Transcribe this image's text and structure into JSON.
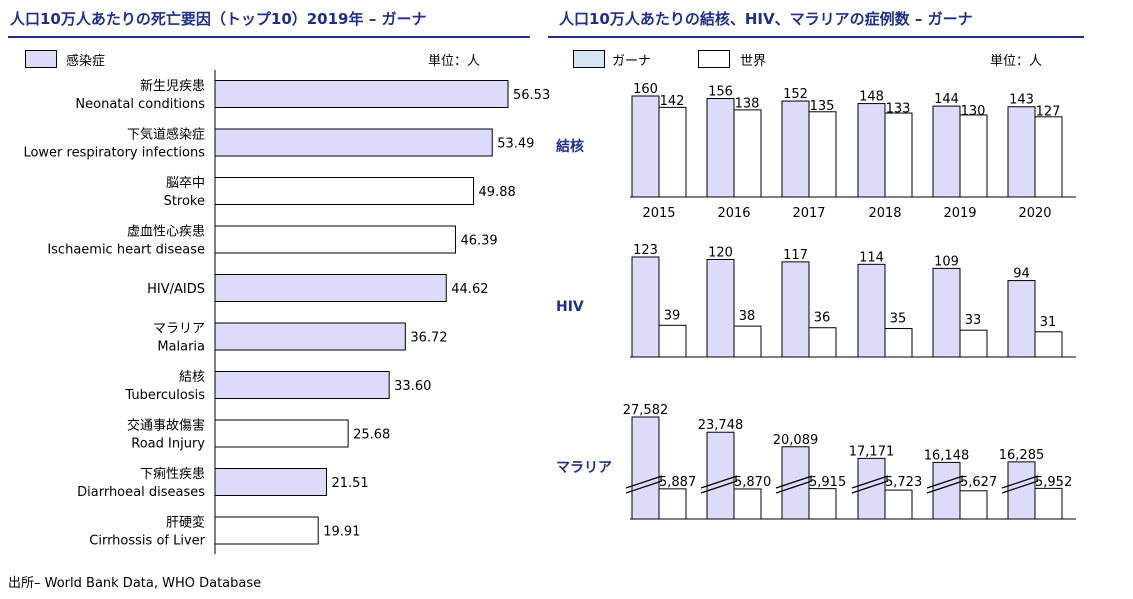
{
  "left": {
    "title": "人口10万人あたりの死亡要因（トップ10）2019年 – ガーナ",
    "legend_label": "感染症",
    "unit": "単位：人"
  },
  "right": {
    "title": "人口10万人あたりの結核、HIV、マラリアの症例数 – ガーナ",
    "legend_ghana": "ガーナ",
    "legend_world": "世界",
    "unit": "単位：人"
  },
  "source": "出所– World Bank Data, WHO Database",
  "colors": {
    "accent": "#1f2f8c",
    "infectious": "#dcdcfa",
    "ghana": "#dcdcfa",
    "world": "#ffffff",
    "legend_ghana_swatch": "#d6e6f4"
  },
  "chart_data": [
    {
      "type": "bar",
      "orientation": "horizontal",
      "categories": [
        {
          "ja": "新生児疾患",
          "en": "Neonatal conditions"
        },
        {
          "ja": "下気道感染症",
          "en": "Lower respiratory infections"
        },
        {
          "ja": "脳卒中",
          "en": "Stroke"
        },
        {
          "ja": "虚血性心疾患",
          "en": "Ischaemic heart disease"
        },
        {
          "ja": "",
          "en": "HIV/AIDS"
        },
        {
          "ja": "マラリア",
          "en": "Malaria"
        },
        {
          "ja": "結核",
          "en": "Tuberculosis"
        },
        {
          "ja": "交通事故傷害",
          "en": "Road Injury"
        },
        {
          "ja": "下痢性疾患",
          "en": "Diarrhoeal diseases"
        },
        {
          "ja": "肝硬変",
          "en": "Cirrhossis of Liver"
        }
      ],
      "values": [
        56.53,
        53.49,
        49.88,
        46.39,
        44.62,
        36.72,
        33.6,
        25.68,
        21.51,
        19.91
      ],
      "labels": [
        "56.53",
        "53.49",
        "49.88",
        "46.39",
        "44.62",
        "36.72",
        "33.60",
        "25.68",
        "21.51",
        "19.91"
      ],
      "infectious": [
        true,
        true,
        false,
        false,
        true,
        true,
        true,
        false,
        true,
        false
      ],
      "xlim": [
        0,
        60
      ]
    },
    {
      "type": "bar",
      "group_label": "結核",
      "categories": [
        "2015",
        "2016",
        "2017",
        "2018",
        "2019",
        "2020"
      ],
      "series": [
        {
          "name": "ガーナ",
          "values": [
            160,
            156,
            152,
            148,
            144,
            143
          ]
        },
        {
          "name": "世界",
          "values": [
            142,
            138,
            135,
            133,
            130,
            127
          ]
        }
      ],
      "ylim": [
        0,
        175
      ]
    },
    {
      "type": "bar",
      "group_label": "HIV",
      "categories": [
        "2015",
        "2016",
        "2017",
        "2018",
        "2019",
        "2020"
      ],
      "series": [
        {
          "name": "ガーナ",
          "values": [
            123,
            120,
            117,
            114,
            109,
            94
          ]
        },
        {
          "name": "世界",
          "values": [
            39,
            38,
            36,
            35,
            33,
            31
          ]
        }
      ],
      "ylim": [
        0,
        130
      ]
    },
    {
      "type": "bar",
      "group_label": "マラリア",
      "categories": [
        "2015",
        "2016",
        "2017",
        "2018",
        "2019",
        "2020"
      ],
      "axis_break": true,
      "series": [
        {
          "name": "ガーナ",
          "values": [
            27582,
            23748,
            20089,
            17171,
            16148,
            16285
          ],
          "labels": [
            "27,582",
            "23,748",
            "20,089",
            "17,171",
            "16,148",
            "16,285"
          ]
        },
        {
          "name": "世界",
          "values": [
            5887,
            5870,
            5915,
            5723,
            5627,
            5952
          ],
          "labels": [
            "5,887",
            "5,870",
            "5,915",
            "5,723",
            "5,627",
            "5,952"
          ]
        }
      ]
    }
  ]
}
